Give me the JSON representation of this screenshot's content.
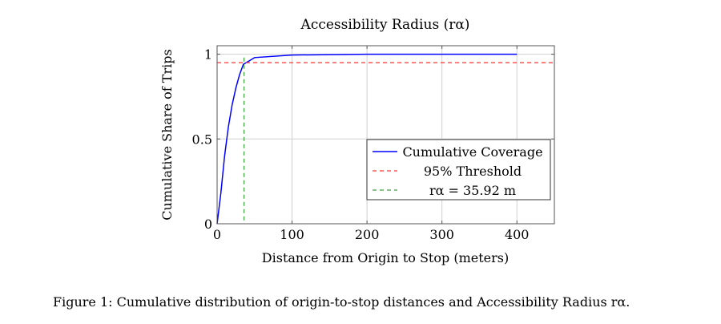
{
  "chart_data": {
    "type": "line",
    "title": "Accessibility Radius (rα)",
    "xlabel": "Distance from Origin to Stop (meters)",
    "ylabel": "Cumulative Share of Trips",
    "xlim": [
      0,
      450
    ],
    "ylim": [
      0,
      1.05
    ],
    "xticks": [
      0,
      100,
      200,
      300,
      400
    ],
    "yticks": [
      0,
      0.5,
      1
    ],
    "ytick_labels": [
      "0",
      "0.5",
      "1"
    ],
    "grid": true,
    "legend_position": "bottom-right",
    "series": [
      {
        "name": "Cumulative Coverage",
        "color": "#0000ff",
        "style": "solid",
        "x": [
          0,
          5,
          10,
          15,
          20,
          25,
          30,
          35,
          50,
          100,
          200,
          300,
          400
        ],
        "y": [
          0,
          0.18,
          0.4,
          0.57,
          0.7,
          0.8,
          0.88,
          0.94,
          0.98,
          0.995,
          1,
          1,
          1
        ]
      },
      {
        "name": "95% Threshold",
        "color": "#ff0000",
        "style": "dashed",
        "hline": 0.95
      },
      {
        "name": "rα = 35.92 m",
        "color": "#00a000",
        "style": "dashed",
        "vline": 35.92
      }
    ]
  },
  "caption": "Figure 1: Cumulative distribution of origin-to-stop distances and Accessibility Radius rα."
}
